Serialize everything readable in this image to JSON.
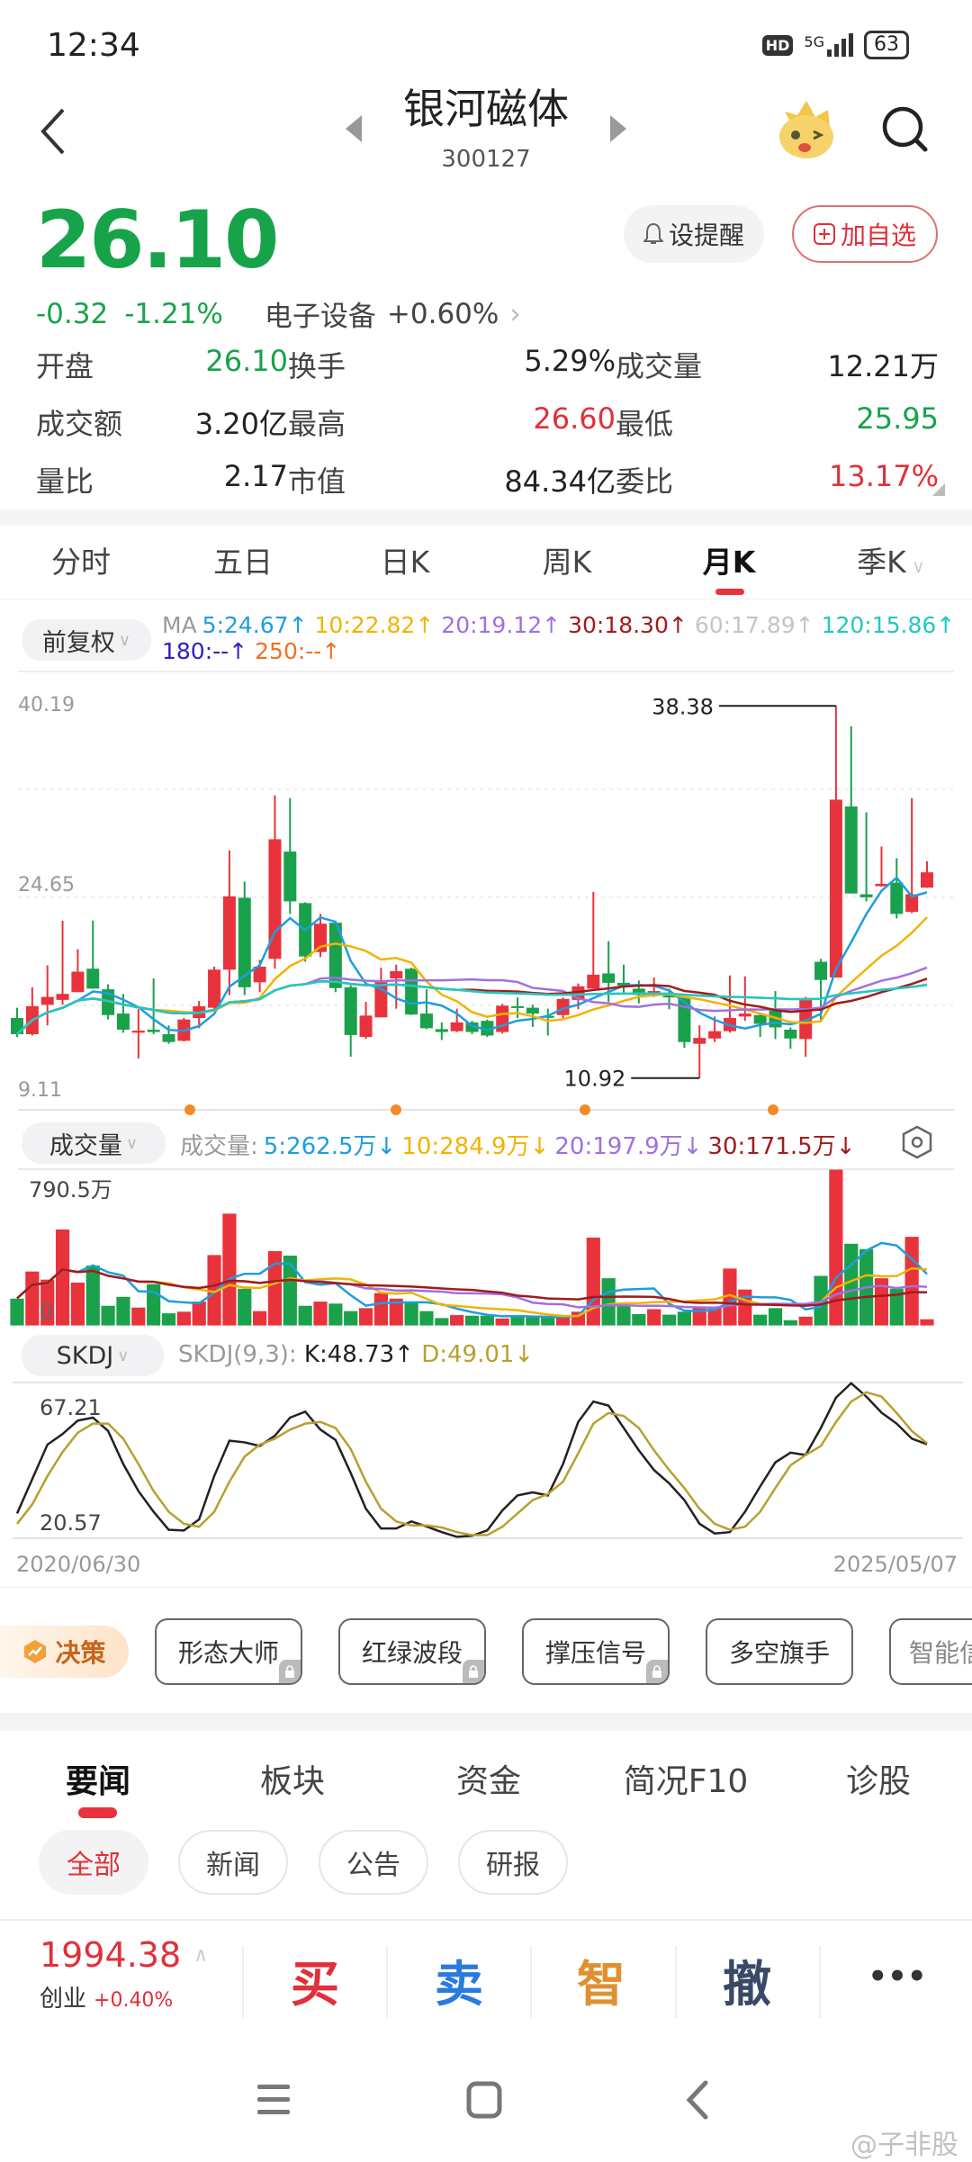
{
  "status_bar": {
    "time": "12:34",
    "hd": "HD",
    "network": "5G",
    "battery": "63"
  },
  "header": {
    "title": "银河磁体",
    "code": "300127",
    "icons": [
      "back-icon",
      "prev-stock-icon",
      "next-stock-icon",
      "mascot-icon",
      "search-icon"
    ]
  },
  "quote": {
    "price": "26.10",
    "change": "-0.32",
    "change_pct": "-1.21%",
    "sector": "电子设备",
    "sector_change": "+0.60%",
    "alert_btn": "设提醒",
    "watchlist_btn": "加自选",
    "stats": [
      {
        "label": "开盘",
        "value": "26.10",
        "color": "#17a34a"
      },
      {
        "label": "换手",
        "value": "5.29%",
        "color": "#222222"
      },
      {
        "label": "成交量",
        "value": "12.21万",
        "color": "#222222"
      },
      {
        "label": "成交额",
        "value": "3.20亿",
        "color": "#222222"
      },
      {
        "label": "最高",
        "value": "26.60",
        "color": "#e0303a"
      },
      {
        "label": "最低",
        "value": "25.95",
        "color": "#17a34a"
      },
      {
        "label": "量比",
        "value": "2.17",
        "color": "#222222"
      },
      {
        "label": "市值",
        "value": "84.34亿",
        "color": "#222222"
      },
      {
        "label": "委比",
        "value": "13.17%",
        "color": "#e0303a"
      }
    ]
  },
  "period_tabs": [
    {
      "label": "分时"
    },
    {
      "label": "五日"
    },
    {
      "label": "日K"
    },
    {
      "label": "周K"
    },
    {
      "label": "月K",
      "active": true
    },
    {
      "label": "季K"
    }
  ],
  "colors": {
    "up": "#e8333c",
    "down": "#1aa14b",
    "accent": "#e8333c"
  },
  "chart_data": [
    {
      "type": "candlestick",
      "adjust_selector": "前复权",
      "ma_prefix": "MA",
      "ma_legend": [
        {
          "text": "5:24.67↑",
          "period": 5,
          "color": "#1e9de0"
        },
        {
          "text": "10:22.82↑",
          "period": 10,
          "color": "#f0b400"
        },
        {
          "text": "20:19.12↑",
          "period": 20,
          "color": "#a070e0"
        },
        {
          "text": "30:18.30↑",
          "period": 30,
          "color": "#a01c1c"
        },
        {
          "text": "60:17.89↑",
          "period": 60,
          "color": "#c4c4c4"
        },
        {
          "text": "120:15.86↑",
          "period": 120,
          "color": "#20c8c0"
        },
        {
          "text": "180:--↑",
          "period": 180,
          "color": "#3020c0"
        },
        {
          "text": "250:--↑",
          "period": 250,
          "color": "#f07020"
        }
      ],
      "y_ticks": [
        "40.19",
        "24.65",
        "9.11"
      ],
      "ylim": [
        9.11,
        40.19
      ],
      "grid": true,
      "max_label": "38.38",
      "min_label": "10.92",
      "x_start": "2020/06/30",
      "x_end": "2025/05/07",
      "ohlc": [
        [
          15.35,
          16.11,
          13.95,
          14.16
        ],
        [
          14.16,
          17.62,
          14.06,
          16.22
        ],
        [
          16.33,
          19.24,
          14.81,
          16.91
        ],
        [
          16.69,
          22.53,
          16.33,
          17.13
        ],
        [
          17.26,
          20.43,
          17.26,
          18.77
        ],
        [
          18.99,
          22.53,
          17.52,
          17.52
        ],
        [
          17.47,
          17.84,
          15.24,
          15.57
        ],
        [
          15.68,
          17.13,
          14.27,
          14.49
        ],
        [
          14.27,
          16.0,
          12.37,
          14.42
        ],
        [
          14.49,
          18.27,
          14.16,
          14.32
        ],
        [
          14.16,
          14.81,
          13.45,
          13.58
        ],
        [
          13.67,
          15.35,
          13.62,
          15.24
        ],
        [
          15.35,
          16.61,
          14.6,
          16.22
        ],
        [
          16.11,
          19.14,
          16.0,
          18.92
        ],
        [
          18.92,
          27.72,
          17.04,
          24.33
        ],
        [
          24.22,
          25.41,
          17.04,
          17.62
        ],
        [
          17.99,
          19.63,
          17.26,
          19.14
        ],
        [
          19.72,
          31.78,
          18.99,
          28.54
        ],
        [
          27.63,
          31.57,
          23.03,
          23.96
        ],
        [
          23.83,
          23.89,
          19.5,
          19.89
        ],
        [
          20.22,
          23.03,
          19.85,
          22.31
        ],
        [
          22.38,
          22.38,
          17.26,
          17.56
        ],
        [
          17.62,
          17.77,
          12.5,
          14.1
        ],
        [
          13.95,
          16.54,
          13.8,
          15.53
        ],
        [
          15.4,
          19.07,
          15.4,
          17.99
        ],
        [
          18.27,
          19.29,
          16.04,
          18.81
        ],
        [
          18.99,
          19.07,
          15.57,
          15.61
        ],
        [
          15.68,
          17.47,
          14.53,
          14.6
        ],
        [
          14.53,
          15.03,
          13.73,
          14.32
        ],
        [
          14.38,
          16.04,
          14.32,
          15.03
        ],
        [
          15.03,
          15.14,
          14.16,
          14.32
        ],
        [
          15.14,
          15.24,
          13.95,
          14.06
        ],
        [
          14.32,
          16.4,
          14.2,
          16.26
        ],
        [
          16.22,
          16.87,
          15.35,
          16.11
        ],
        [
          16.11,
          16.33,
          14.7,
          15.68
        ],
        [
          15.5,
          16.04,
          14.06,
          15.42
        ],
        [
          15.57,
          16.87,
          15.35,
          16.76
        ],
        [
          16.69,
          17.9,
          16.0,
          17.69
        ],
        [
          17.52,
          24.65,
          17.52,
          18.55
        ],
        [
          18.64,
          21.02,
          16.54,
          17.95
        ],
        [
          17.95,
          19.29,
          17.08,
          17.73
        ],
        [
          17.52,
          18.12,
          16.43,
          17.04
        ],
        [
          17.13,
          18.34,
          16.91,
          17.34
        ],
        [
          17.19,
          17.52,
          16.0,
          16.87
        ],
        [
          16.91,
          16.97,
          13.15,
          13.58
        ],
        [
          13.45,
          14.81,
          10.92,
          13.88
        ],
        [
          13.84,
          15.46,
          13.58,
          14.38
        ],
        [
          14.38,
          18.49,
          14.27,
          15.35
        ],
        [
          15.46,
          18.42,
          15.14,
          15.68
        ],
        [
          15.57,
          15.68,
          13.95,
          14.92
        ],
        [
          15.89,
          17.34,
          13.8,
          14.66
        ],
        [
          14.49,
          14.66,
          13.08,
          13.84
        ],
        [
          13.8,
          16.91,
          12.5,
          16.69
        ],
        [
          19.5,
          19.72,
          15.14,
          18.16
        ],
        [
          18.34,
          38.38,
          18.34,
          31.46
        ],
        [
          30.96,
          36.87,
          24.54,
          24.54
        ],
        [
          24.48,
          30.53,
          23.96,
          24.26
        ],
        [
          25.08,
          28.0,
          25.04,
          25.25
        ],
        [
          25.34,
          27.14,
          22.7,
          23.03
        ],
        [
          23.18,
          31.57,
          23.09,
          24.48
        ],
        [
          24.97,
          26.92,
          24.97,
          26.1
        ]
      ]
    },
    {
      "type": "bar",
      "selector": "成交量",
      "legend_prefix": "成交量:",
      "unit": "万",
      "ma_legend": [
        {
          "text": "5:262.5万↓",
          "period": 5,
          "color": "#1e9de0"
        },
        {
          "text": "10:284.9万↓",
          "period": 10,
          "color": "#f0b400"
        },
        {
          "text": "20:197.9万↓",
          "period": 20,
          "color": "#a070e0"
        },
        {
          "text": "30:171.5万↓",
          "period": 30,
          "color": "#a01c1c"
        }
      ],
      "y_max_label": "790.5万",
      "y_min_label": "0",
      "ylim": [
        0,
        790.5
      ],
      "values": [
        139,
        276,
        235,
        488,
        220,
        306,
        103,
        148,
        94,
        212,
        65,
        73,
        124,
        359,
        568,
        189,
        76,
        379,
        356,
        103,
        124,
        114,
        76,
        91,
        167,
        139,
        121,
        76,
        41,
        56,
        53,
        53,
        39,
        45,
        45,
        45,
        45,
        73,
        447,
        242,
        106,
        61,
        86,
        58,
        73,
        94,
        94,
        291,
        185,
        58,
        91,
        30,
        48,
        254,
        790.5,
        416,
        389,
        242,
        189,
        451,
        35
      ]
    },
    {
      "type": "line",
      "selector": "SKDJ",
      "legend_prefix": "SKDJ(9,3):",
      "k_label": "K:48.73↑",
      "d_label": "D:49.01↓",
      "k_color": "#222222",
      "d_color": "#b8a030",
      "y_max_label": "67.21",
      "y_min_label": "20.57",
      "ylim": [
        20.57,
        67.21
      ],
      "x_start": "2020/06/30",
      "x_end": "2025/05/07",
      "series": [
        {
          "name": "K",
          "values": [
            28.0,
            38.3,
            48.6,
            51.8,
            55.8,
            56.7,
            52.7,
            42.8,
            34.7,
            28.5,
            23.1,
            22.9,
            26.2,
            39.2,
            49.8,
            49.3,
            48.2,
            51.3,
            56.7,
            58.5,
            53.1,
            50.0,
            40.1,
            29.4,
            23.5,
            23.5,
            25.6,
            24.1,
            22.4,
            21.0,
            21.3,
            22.9,
            28.9,
            33.4,
            34.3,
            33.4,
            42.8,
            55.4,
            61.5,
            60.3,
            53.6,
            46.9,
            41.0,
            37.0,
            32.0,
            24.9,
            22.0,
            22.4,
            28.5,
            36.1,
            43.3,
            46.2,
            45.5,
            53.6,
            62.7,
            67.0,
            63.0,
            58.2,
            54.9,
            50.4,
            48.73
          ]
        },
        {
          "name": "D",
          "values": [
            24.9,
            30.7,
            39.2,
            46.4,
            52.2,
            54.9,
            54.9,
            50.4,
            42.8,
            34.7,
            28.5,
            24.9,
            24.0,
            28.5,
            37.5,
            45.0,
            48.6,
            50.4,
            53.1,
            54.9,
            55.4,
            53.6,
            47.3,
            37.5,
            29.4,
            25.6,
            24.4,
            24.4,
            23.8,
            22.4,
            21.5,
            21.5,
            24.0,
            28.0,
            32.0,
            33.8,
            37.5,
            46.0,
            54.9,
            58.1,
            57.2,
            53.6,
            46.9,
            41.0,
            35.6,
            29.4,
            24.9,
            23.1,
            24.0,
            28.5,
            35.6,
            42.4,
            45.5,
            48.2,
            55.4,
            61.5,
            64.3,
            63.0,
            58.1,
            52.7,
            49.01
          ]
        }
      ]
    }
  ],
  "decision": {
    "label": "决策",
    "tools": [
      {
        "label": "形态大师",
        "locked": true
      },
      {
        "label": "红绿波段",
        "locked": true
      },
      {
        "label": "撑压信号",
        "locked": true
      },
      {
        "label": "多空旗手",
        "locked": false
      },
      {
        "label": "智能信",
        "locked": false
      }
    ]
  },
  "news_tabs": [
    {
      "label": "要闻",
      "active": true
    },
    {
      "label": "板块"
    },
    {
      "label": "资金"
    },
    {
      "label": "简况F10"
    },
    {
      "label": "诊股"
    }
  ],
  "news_chips": [
    {
      "label": "全部",
      "active": true
    },
    {
      "label": "新闻"
    },
    {
      "label": "公告"
    },
    {
      "label": "研报"
    }
  ],
  "bottom_bar": {
    "index_value": "1994.38",
    "index_name": "创业",
    "index_change": "+0.40%",
    "actions": [
      {
        "label": "买",
        "color": "#e0303a"
      },
      {
        "label": "卖",
        "color": "#2a7ae0"
      },
      {
        "label": "智",
        "color": "#e09030"
      },
      {
        "label": "撤",
        "color": "#3a4a66"
      },
      {
        "label": "•••",
        "color": "#333333"
      }
    ]
  },
  "watermark": "@子非股"
}
